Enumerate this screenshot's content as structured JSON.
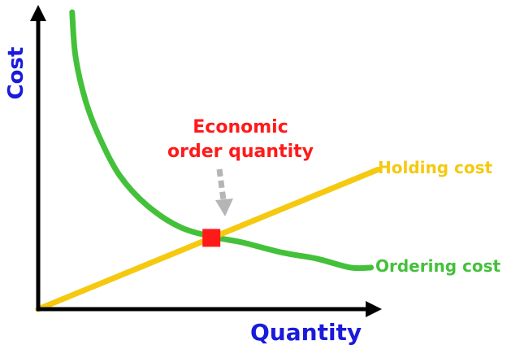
{
  "colors": {
    "axis": "#000000",
    "axis_label": "#1a1adb",
    "ordering": "#44c13a",
    "holding": "#f5c90f",
    "eoq": "#ff1a1a",
    "arrow": "#b5b5b5"
  },
  "chart_data": {
    "type": "line",
    "xlabel": "Quantity",
    "ylabel": "Cost",
    "xlim": [
      0,
      100
    ],
    "ylim": [
      0,
      100
    ],
    "grid": false,
    "axis_ticks": false,
    "series": [
      {
        "name": "Holding cost",
        "color_key": "holding",
        "points": [
          [
            0,
            0
          ],
          [
            100,
            47
          ]
        ]
      },
      {
        "name": "Ordering cost",
        "color_key": "ordering",
        "points": [
          [
            10,
            100
          ],
          [
            11,
            85
          ],
          [
            14,
            70
          ],
          [
            18,
            58
          ],
          [
            24,
            45
          ],
          [
            32,
            35
          ],
          [
            42,
            27.5
          ],
          [
            53,
            24
          ],
          [
            60,
            22.5
          ],
          [
            72,
            19
          ],
          [
            82,
            17
          ],
          [
            92,
            14
          ],
          [
            98,
            14
          ]
        ]
      }
    ],
    "annotations": [
      {
        "kind": "eoq-marker",
        "lines": [
          "Economic",
          "order quantity"
        ],
        "x": 51,
        "y": 24
      }
    ]
  }
}
